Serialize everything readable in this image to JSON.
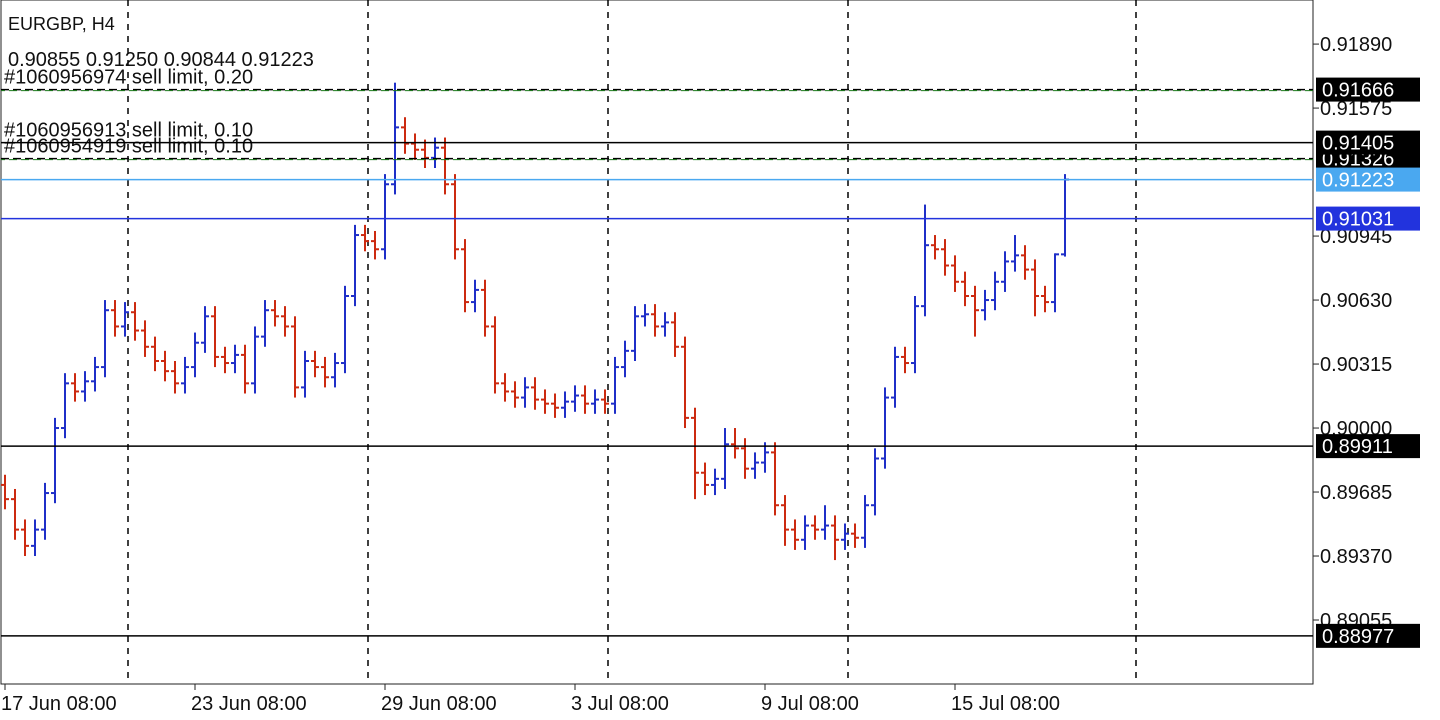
{
  "chart_data": {
    "type": "ohlc",
    "title": "EURGBP, H4",
    "quote": "0.90855 0.91250 0.90844 0.91223",
    "up_color": "#1f2fc8",
    "down_color": "#cc2a10",
    "ylim": [
      0.8874,
      0.92107
    ],
    "yticks": [
      {
        "value": 0.9189,
        "label": "0.91890"
      },
      0.91575,
      0.90945,
      {
        "value": 0.9063,
        "label": "0.90630"
      },
      0.90315,
      {
        "value": 0.9,
        "label": "0.90000"
      },
      0.89685,
      {
        "value": 0.8937,
        "label": "0.89370"
      },
      0.89055
    ],
    "categories": [
      "17 Jun 08:00",
      null,
      null,
      null,
      null,
      null,
      null,
      null,
      null,
      null,
      null,
      null,
      null,
      null,
      null,
      null,
      null,
      null,
      null,
      "23 Jun 08:00",
      null,
      null,
      null,
      null,
      null,
      null,
      null,
      null,
      null,
      null,
      null,
      null,
      null,
      null,
      null,
      null,
      null,
      null,
      "29 Jun 08:00",
      null,
      null,
      null,
      null,
      null,
      null,
      null,
      null,
      null,
      null,
      null,
      null,
      null,
      null,
      null,
      null,
      null,
      null,
      "3 Jul 08:00",
      null,
      null,
      null,
      null,
      null,
      null,
      null,
      null,
      null,
      null,
      null,
      null,
      null,
      null,
      null,
      null,
      null,
      null,
      "9 Jul 08:00",
      null,
      null,
      null,
      null,
      null,
      null,
      null,
      null,
      null,
      null,
      null,
      null,
      null,
      null,
      null,
      null,
      null,
      null,
      "15 Jul 08:00",
      null,
      null,
      null,
      null,
      null,
      null,
      null,
      null,
      null,
      null,
      null
    ],
    "open": [
      0.8972,
      0.8965,
      0.895,
      0.8942,
      0.895,
      0.8968,
      0.9,
      0.9022,
      0.9018,
      0.9023,
      0.903,
      0.9058,
      0.905,
      0.9057,
      0.9048,
      0.904,
      0.9033,
      0.9028,
      0.9022,
      0.903,
      0.9042,
      0.9055,
      0.9035,
      0.9032,
      0.9036,
      0.9022,
      0.9045,
      0.9058,
      0.9055,
      0.905,
      0.902,
      0.9033,
      0.903,
      0.9025,
      0.9032,
      0.9065,
      0.9095,
      0.9092,
      0.9088,
      0.912,
      0.9148,
      0.914,
      0.9137,
      0.9133,
      0.9138,
      0.912,
      0.9088,
      0.9062,
      0.9068,
      0.905,
      0.9022,
      0.9018,
      0.9015,
      0.902,
      0.9014,
      0.9012,
      0.901,
      0.9013,
      0.9016,
      0.9012,
      0.9014,
      0.9012,
      0.903,
      0.9038,
      0.9055,
      0.9056,
      0.905,
      0.9052,
      0.904,
      0.9005,
      0.8978,
      0.8972,
      0.8975,
      0.8992,
      0.899,
      0.898,
      0.8983,
      0.8988,
      0.8962,
      0.895,
      0.8945,
      0.8952,
      0.895,
      0.8952,
      0.8945,
      0.8948,
      0.8946,
      0.8962,
      0.8985,
      0.9015,
      0.9035,
      0.9032,
      0.906,
      0.909,
      0.9088,
      0.908,
      0.9072,
      0.9065,
      0.9058,
      0.9063,
      0.9072,
      0.9082,
      0.9085,
      0.9078,
      0.9065,
      0.9062,
      0.90855
    ],
    "high": [
      0.8977,
      0.897,
      0.8955,
      0.8955,
      0.8973,
      0.9005,
      0.9027,
      0.9027,
      0.9028,
      0.9035,
      0.9063,
      0.9063,
      0.9062,
      0.9062,
      0.9053,
      0.9045,
      0.9038,
      0.9033,
      0.9035,
      0.9047,
      0.906,
      0.906,
      0.904,
      0.9041,
      0.9041,
      0.905,
      0.9063,
      0.9063,
      0.906,
      0.9055,
      0.9038,
      0.9038,
      0.9035,
      0.9037,
      0.907,
      0.91,
      0.91,
      0.9097,
      0.9125,
      0.917,
      0.9153,
      0.9145,
      0.9142,
      0.9143,
      0.9143,
      0.9125,
      0.9093,
      0.9073,
      0.9073,
      0.9055,
      0.9027,
      0.9023,
      0.9025,
      0.9025,
      0.9019,
      0.9017,
      0.9018,
      0.9021,
      0.9021,
      0.9019,
      0.9019,
      0.9035,
      0.9043,
      0.906,
      0.9061,
      0.9061,
      0.9057,
      0.9057,
      0.9045,
      0.901,
      0.8983,
      0.898,
      0.9,
      0.9,
      0.8995,
      0.8988,
      0.8993,
      0.8993,
      0.8967,
      0.8955,
      0.8957,
      0.8957,
      0.8962,
      0.8957,
      0.8953,
      0.8953,
      0.8967,
      0.899,
      0.902,
      0.904,
      0.904,
      0.9065,
      0.911,
      0.9095,
      0.9093,
      0.9085,
      0.9077,
      0.907,
      0.9068,
      0.9077,
      0.9087,
      0.9095,
      0.909,
      0.9083,
      0.907,
      0.9086,
      0.9125
    ],
    "low": [
      0.896,
      0.8945,
      0.8937,
      0.8937,
      0.8945,
      0.8963,
      0.8995,
      0.9013,
      0.9013,
      0.9018,
      0.9025,
      0.9045,
      0.9045,
      0.9043,
      0.9035,
      0.9028,
      0.9023,
      0.9017,
      0.9017,
      0.9025,
      0.9037,
      0.903,
      0.9027,
      0.9027,
      0.9017,
      0.9017,
      0.904,
      0.905,
      0.9045,
      0.9015,
      0.9015,
      0.9025,
      0.902,
      0.902,
      0.9027,
      0.906,
      0.9087,
      0.9083,
      0.9083,
      0.9115,
      0.9135,
      0.9132,
      0.9128,
      0.9128,
      0.9115,
      0.9083,
      0.9057,
      0.9057,
      0.9045,
      0.9017,
      0.9013,
      0.901,
      0.901,
      0.9009,
      0.9007,
      0.9005,
      0.9005,
      0.9008,
      0.9007,
      0.9007,
      0.9007,
      0.9007,
      0.9025,
      0.9033,
      0.905,
      0.9045,
      0.9045,
      0.9035,
      0.9,
      0.8965,
      0.8967,
      0.8967,
      0.897,
      0.8985,
      0.8975,
      0.8975,
      0.8978,
      0.8957,
      0.8942,
      0.894,
      0.894,
      0.8945,
      0.8945,
      0.8935,
      0.894,
      0.8941,
      0.8941,
      0.8957,
      0.898,
      0.901,
      0.9027,
      0.9027,
      0.9055,
      0.9083,
      0.9075,
      0.9067,
      0.906,
      0.9045,
      0.9053,
      0.9058,
      0.9067,
      0.9077,
      0.9073,
      0.9055,
      0.9057,
      0.9057,
      0.90844
    ],
    "close": [
      0.8965,
      0.895,
      0.8942,
      0.895,
      0.8968,
      0.9,
      0.9022,
      0.9018,
      0.9023,
      0.903,
      0.9058,
      0.905,
      0.9057,
      0.9048,
      0.904,
      0.9033,
      0.9028,
      0.9022,
      0.903,
      0.9042,
      0.9055,
      0.9035,
      0.9032,
      0.9036,
      0.9022,
      0.9045,
      0.9058,
      0.9055,
      0.905,
      0.902,
      0.9033,
      0.903,
      0.9025,
      0.9032,
      0.9065,
      0.9095,
      0.9092,
      0.9088,
      0.912,
      0.9148,
      0.914,
      0.9137,
      0.9133,
      0.9138,
      0.912,
      0.9088,
      0.9062,
      0.9068,
      0.905,
      0.9022,
      0.9018,
      0.9015,
      0.902,
      0.9014,
      0.9012,
      0.901,
      0.9013,
      0.9016,
      0.9012,
      0.9014,
      0.9012,
      0.903,
      0.9038,
      0.9055,
      0.9056,
      0.905,
      0.9052,
      0.904,
      0.9005,
      0.8978,
      0.8972,
      0.8975,
      0.8992,
      0.899,
      0.898,
      0.8983,
      0.8988,
      0.8962,
      0.895,
      0.8945,
      0.8952,
      0.895,
      0.8952,
      0.8945,
      0.8948,
      0.8946,
      0.8962,
      0.8985,
      0.9015,
      0.9035,
      0.9032,
      0.906,
      0.909,
      0.9088,
      0.908,
      0.9072,
      0.9065,
      0.9058,
      0.9063,
      0.9072,
      0.9082,
      0.9085,
      0.9078,
      0.9065,
      0.9062,
      0.90855,
      0.91223
    ],
    "levels": [
      {
        "value": 0.91666,
        "color": "#000000",
        "dashed": true,
        "text": "#1060956974 sell limit, 0.20"
      },
      {
        "value": 0.91326,
        "color": "#000000",
        "dashed": true,
        "text": "#1060954919 sell limit, 0.10"
      },
      {
        "value": 0.91405,
        "color": "#000000",
        "dashed": false,
        "text": "#1060956913 sell limit, 0.10"
      },
      {
        "value": 0.91223,
        "color": "#4aa8f0",
        "dashed": false
      },
      {
        "value": 0.91031,
        "color": "#2233dd",
        "dashed": false
      },
      {
        "value": 0.89911,
        "color": "#000000",
        "dashed": false
      },
      {
        "value": 0.88977,
        "color": "#000000",
        "dashed": false
      }
    ]
  }
}
